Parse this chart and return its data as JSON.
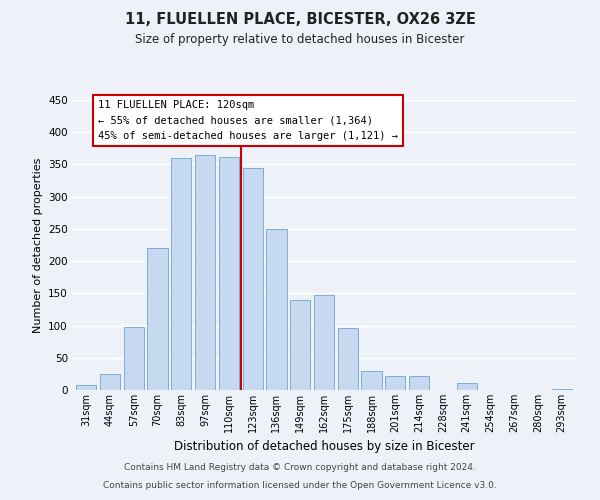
{
  "title": "11, FLUELLEN PLACE, BICESTER, OX26 3ZE",
  "subtitle": "Size of property relative to detached houses in Bicester",
  "xlabel": "Distribution of detached houses by size in Bicester",
  "ylabel": "Number of detached properties",
  "bar_labels": [
    "31sqm",
    "44sqm",
    "57sqm",
    "70sqm",
    "83sqm",
    "97sqm",
    "110sqm",
    "123sqm",
    "136sqm",
    "149sqm",
    "162sqm",
    "175sqm",
    "188sqm",
    "201sqm",
    "214sqm",
    "228sqm",
    "241sqm",
    "254sqm",
    "267sqm",
    "280sqm",
    "293sqm"
  ],
  "bar_values": [
    8,
    25,
    98,
    220,
    360,
    365,
    362,
    345,
    250,
    140,
    148,
    96,
    30,
    22,
    22,
    0,
    11,
    0,
    0,
    0,
    2
  ],
  "bar_color": "#c6d9f0",
  "bar_edge_color": "#7bafd4",
  "highlight_index": 7,
  "highlight_line_color": "#cc0000",
  "ylim": [
    0,
    450
  ],
  "yticks": [
    0,
    50,
    100,
    150,
    200,
    250,
    300,
    350,
    400,
    450
  ],
  "annotation_title": "11 FLUELLEN PLACE: 120sqm",
  "annotation_line1": "← 55% of detached houses are smaller (1,364)",
  "annotation_line2": "45% of semi-detached houses are larger (1,121) →",
  "footer_line1": "Contains HM Land Registry data © Crown copyright and database right 2024.",
  "footer_line2": "Contains public sector information licensed under the Open Government Licence v3.0.",
  "background_color": "#eef2f8",
  "grid_color": "#ffffff",
  "annotation_box_color": "#ffffff",
  "annotation_box_edge": "#cc0000"
}
